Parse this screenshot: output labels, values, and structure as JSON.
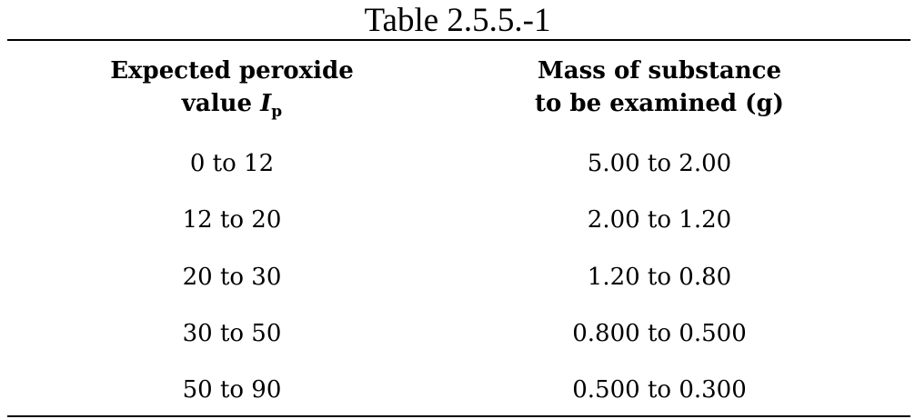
{
  "table": {
    "caption": "Table 2.5.5.-1",
    "headers": {
      "col1_line1": "Expected peroxide",
      "col1_line2_prefix": "value ",
      "col1_symbol": "I",
      "col1_symbol_sub": "p",
      "col2_line1": "Mass of substance",
      "col2_line2": "to be examined (g)"
    },
    "rows": [
      {
        "peroxide_value": "0 to 12",
        "mass": "5.00 to 2.00"
      },
      {
        "peroxide_value": "12 to 20",
        "mass": "2.00 to 1.20"
      },
      {
        "peroxide_value": "20 to 30",
        "mass": "1.20 to 0.80"
      },
      {
        "peroxide_value": "30 to 50",
        "mass": "0.800 to 0.500"
      },
      {
        "peroxide_value": "50 to 90",
        "mass": "0.500 to 0.300"
      }
    ]
  }
}
